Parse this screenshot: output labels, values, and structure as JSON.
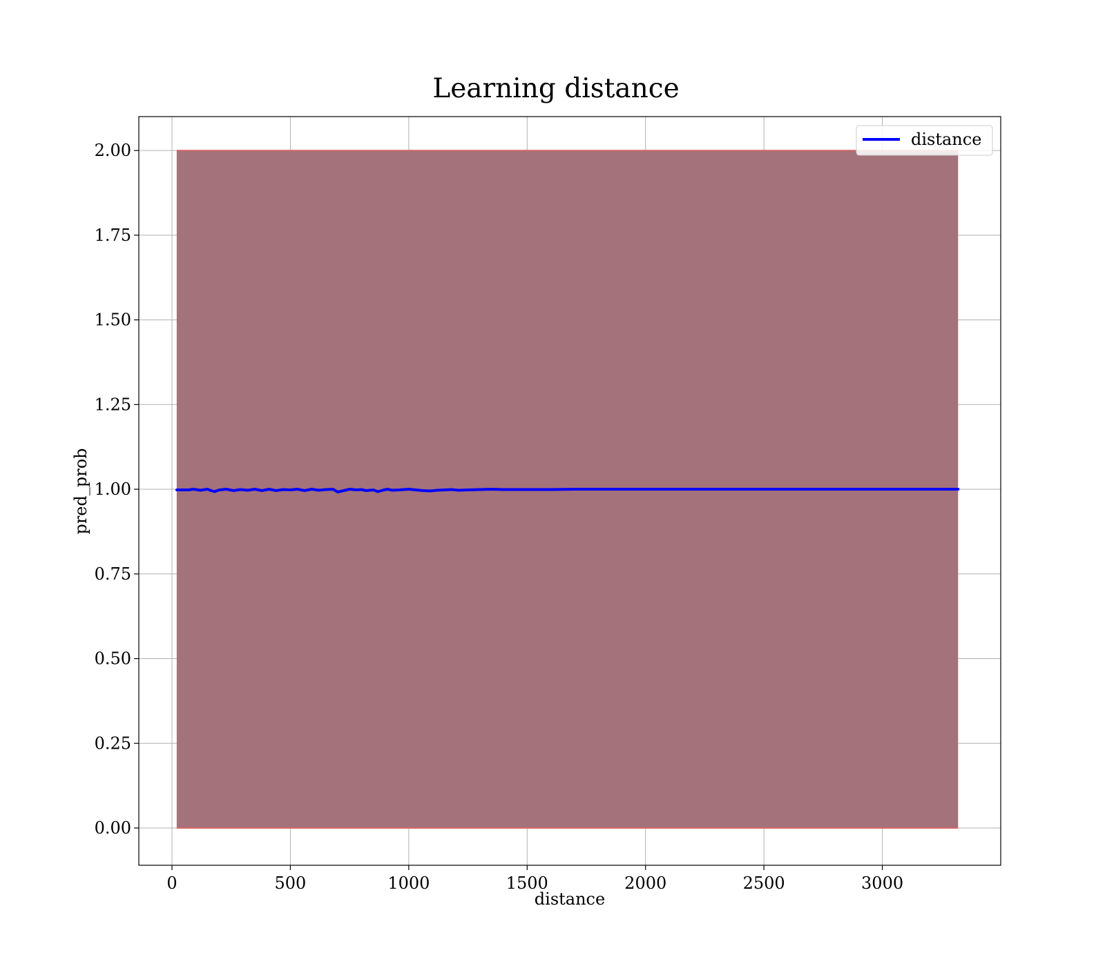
{
  "chart_data": {
    "type": "line",
    "title": "Learning distance",
    "xlabel": "distance",
    "ylabel": "pred_prob",
    "xlim": [
      -140,
      3500
    ],
    "ylim": [
      -0.11,
      2.1
    ],
    "xticks": [
      0,
      500,
      1000,
      1500,
      2000,
      2500,
      3000
    ],
    "xtick_labels": [
      "0",
      "500",
      "1000",
      "1500",
      "2000",
      "2500",
      "3000"
    ],
    "yticks": [
      0.0,
      0.25,
      0.5,
      0.75,
      1.0,
      1.25,
      1.5,
      1.75,
      2.0
    ],
    "ytick_labels": [
      "0.00",
      "0.25",
      "0.50",
      "0.75",
      "1.00",
      "1.25",
      "1.50",
      "1.75",
      "2.00"
    ],
    "grid": true,
    "legend_position": "top-right",
    "band": {
      "x_start": 20,
      "x_end": 3320,
      "lower": 0.0,
      "upper": 2.0,
      "color": "#a3727a",
      "edge_color": "#d46a6a"
    },
    "series": [
      {
        "name": "distance",
        "color": "#0000ff",
        "x": [
          20,
          70,
          90,
          120,
          150,
          165,
          180,
          200,
          230,
          260,
          290,
          320,
          350,
          380,
          410,
          440,
          470,
          500,
          530,
          560,
          590,
          620,
          650,
          680,
          700,
          720,
          750,
          780,
          800,
          820,
          850,
          870,
          890,
          910,
          930,
          960,
          1000,
          1030,
          1060,
          1090,
          1120,
          1150,
          1180,
          1210,
          1250,
          1300,
          1350,
          1400,
          1450,
          1500,
          1600,
          1700,
          2000,
          2500,
          3000,
          3320
        ],
        "y": [
          0.998,
          0.998,
          1.0,
          0.997,
          1.0,
          0.996,
          0.993,
          0.998,
          1.0,
          0.996,
          0.999,
          0.997,
          1.0,
          0.996,
          1.0,
          0.996,
          0.999,
          0.998,
          1.0,
          0.996,
          1.0,
          0.997,
          0.999,
          1.0,
          0.992,
          0.995,
          1.0,
          0.998,
          0.999,
          0.996,
          0.998,
          0.993,
          0.997,
          1.0,
          0.997,
          0.998,
          1.0,
          0.998,
          0.996,
          0.995,
          0.997,
          0.998,
          0.999,
          0.997,
          0.998,
          0.999,
          1.0,
          0.999,
          0.999,
          0.999,
          0.999,
          1.0,
          1.0,
          1.0,
          1.0,
          1.0
        ]
      }
    ]
  }
}
